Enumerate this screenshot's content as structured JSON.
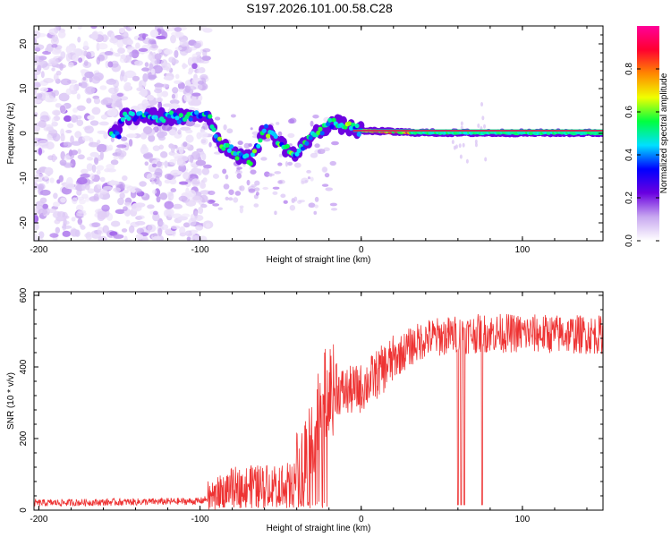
{
  "title": "S197.2026.101.00.58.C28",
  "colors": {
    "signal_line": "#ee3333",
    "frame": "#000000",
    "background": "#ffffff"
  },
  "chart_data": [
    {
      "type": "heatmap",
      "name": "spectrogram",
      "xlabel": "Height of straight line (km)",
      "ylabel": "Frequency (Hz)",
      "xlim": [
        -203,
        150
      ],
      "ylim": [
        -24,
        24
      ],
      "x_ticks": [
        -200,
        -100,
        0,
        100
      ],
      "y_ticks": [
        -20,
        -10,
        0,
        10,
        20
      ],
      "colorbar": {
        "label": "Normalized spectral amplitude",
        "range": [
          0,
          1
        ],
        "ticks": [
          "0.0",
          "0.2",
          "0.4",
          "0.6",
          "0.8"
        ],
        "tick_values": [
          0.0,
          0.2,
          0.4,
          0.6,
          0.8
        ],
        "colormap": [
          "#ffffff",
          "#c8a8f0",
          "#6a00e0",
          "#0000ff",
          "#00e0ff",
          "#00ff40",
          "#f0ff00",
          "#ff8800",
          "#ff0030",
          "#ff0099"
        ]
      },
      "ridge_trace": [
        {
          "x": -150,
          "y": 3.5
        },
        {
          "x": -130,
          "y": 3.8
        },
        {
          "x": -110,
          "y": 3.5
        },
        {
          "x": -95,
          "y": 4.2
        },
        {
          "x": -88,
          "y": -2
        },
        {
          "x": -80,
          "y": -4
        },
        {
          "x": -75,
          "y": -5
        },
        {
          "x": -68,
          "y": -6
        },
        {
          "x": -60,
          "y": 1
        },
        {
          "x": -50,
          "y": -2
        },
        {
          "x": -45,
          "y": -4
        },
        {
          "x": -40,
          "y": -5
        },
        {
          "x": -35,
          "y": -2
        },
        {
          "x": -28,
          "y": 0
        },
        {
          "x": -20,
          "y": 2
        },
        {
          "x": -15,
          "y": 2.2
        },
        {
          "x": -10,
          "y": 1.5
        },
        {
          "x": 0,
          "y": 0.5
        },
        {
          "x": 10,
          "y": 0.5
        },
        {
          "x": 30,
          "y": 0.2
        },
        {
          "x": 60,
          "y": 0.1
        },
        {
          "x": 100,
          "y": 0.1
        },
        {
          "x": 150,
          "y": 0.1
        }
      ]
    },
    {
      "type": "line",
      "name": "snr",
      "xlabel": "Height of straight line (km)",
      "ylabel": "SNR (10 * v/v)",
      "xlim": [
        -203,
        150
      ],
      "ylim": [
        0,
        610
      ],
      "x_ticks": [
        -200,
        -100,
        0,
        100
      ],
      "y_ticks": [
        0,
        200,
        400,
        600
      ],
      "envelope": [
        {
          "x": -203,
          "y": 20
        },
        {
          "x": -100,
          "y": 25
        },
        {
          "x": -90,
          "y": 40
        },
        {
          "x": -80,
          "y": 70
        },
        {
          "x": -60,
          "y": 80
        },
        {
          "x": -40,
          "y": 90
        },
        {
          "x": -35,
          "y": 140
        },
        {
          "x": -30,
          "y": 220
        },
        {
          "x": -25,
          "y": 300
        },
        {
          "x": -20,
          "y": 340
        },
        {
          "x": -10,
          "y": 330
        },
        {
          "x": 0,
          "y": 340
        },
        {
          "x": 10,
          "y": 380
        },
        {
          "x": 20,
          "y": 420
        },
        {
          "x": 30,
          "y": 455
        },
        {
          "x": 40,
          "y": 480
        },
        {
          "x": 60,
          "y": 490
        },
        {
          "x": 80,
          "y": 495
        },
        {
          "x": 150,
          "y": 490
        }
      ],
      "dropouts": [
        {
          "x": 60,
          "y": 15
        },
        {
          "x": 62,
          "y": 15
        },
        {
          "x": 64,
          "y": 15
        },
        {
          "x": 75,
          "y": 20
        }
      ]
    }
  ]
}
